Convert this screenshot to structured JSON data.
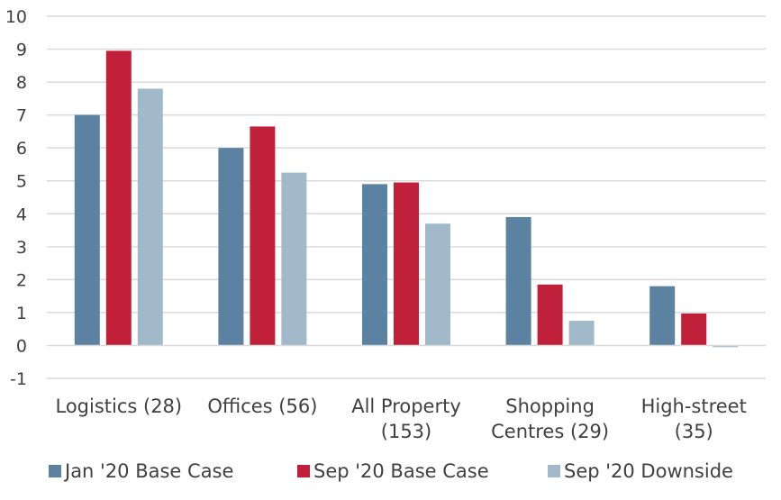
{
  "chart_data": {
    "type": "bar",
    "title": "",
    "xlabel": "",
    "ylabel": "",
    "ylim": [
      -1,
      10
    ],
    "yticks": [
      "10",
      "9",
      "8",
      "7",
      "6",
      "5",
      "4",
      "3",
      "2",
      "1",
      "0",
      "-1"
    ],
    "grid": true,
    "legend_position": "bottom",
    "categories": [
      [
        "Logistics (28)"
      ],
      [
        "Offices (56)"
      ],
      [
        "All Property",
        "(153)"
      ],
      [
        "Shopping",
        "Centres (29)"
      ],
      [
        "High-street",
        "(35)"
      ]
    ],
    "series": [
      {
        "name": "Jan '20 Base Case",
        "color": "#5b82a0",
        "values": [
          7.0,
          6.0,
          4.9,
          3.9,
          1.8
        ]
      },
      {
        "name": "Sep '20 Base Case",
        "color": "#c0203a",
        "values": [
          8.95,
          6.65,
          4.95,
          1.85,
          0.97
        ]
      },
      {
        "name": "Sep '20 Downside",
        "color": "#a2b9ca",
        "values": [
          7.8,
          5.25,
          3.7,
          0.75,
          -0.05
        ]
      }
    ]
  }
}
